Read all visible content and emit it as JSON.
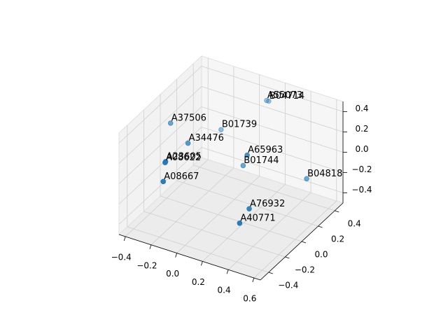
{
  "chart_data": {
    "type": "scatter3d",
    "labels": [
      "A55073",
      "B04714",
      "A37506",
      "B01739",
      "A34476",
      "A23605",
      "A08622",
      "A65963",
      "B01744",
      "B04818",
      "A08667",
      "A76932",
      "A40771"
    ],
    "x": [
      0.12,
      0.13,
      -0.37,
      -0.17,
      -0.17,
      -0.28,
      -0.22,
      0.29,
      0.13,
      0.56,
      -0.17,
      0.37,
      0.36
    ],
    "y": [
      0.4,
      0.41,
      0.0,
      0.3,
      -0.1,
      -0.2,
      -0.3,
      -0.1,
      0.1,
      0.2,
      -0.4,
      -0.2,
      -0.3
    ],
    "z": [
      0.37,
      0.36,
      0.25,
      0.04,
      0.21,
      0.06,
      0.15,
      0.28,
      -0.04,
      -0.07,
      0.06,
      -0.14,
      -0.21
    ],
    "color": "#1f77b4",
    "xlim": [
      -0.45,
      0.65
    ],
    "ylim": [
      -0.5,
      0.5
    ],
    "zlim": [
      -0.5,
      0.5
    ],
    "xticks": [
      {
        "value": -0.4,
        "label": "−0.4"
      },
      {
        "value": -0.2,
        "label": "−0.2"
      },
      {
        "value": 0,
        "label": "0.0"
      },
      0.2,
      0.4,
      0.6
    ],
    "yticks": [
      {
        "value": -0.4,
        "label": "−0.4"
      },
      {
        "value": -0.2,
        "label": "−0.2"
      },
      {
        "value": 0,
        "label": "0.0"
      },
      0.2,
      0.4
    ],
    "zticks": [
      {
        "value": -0.4,
        "label": "−0.4"
      },
      {
        "value": -0.2,
        "label": "−0.2"
      },
      {
        "value": 0,
        "label": "0.0"
      },
      0.2,
      0.4
    ],
    "grid": true
  }
}
